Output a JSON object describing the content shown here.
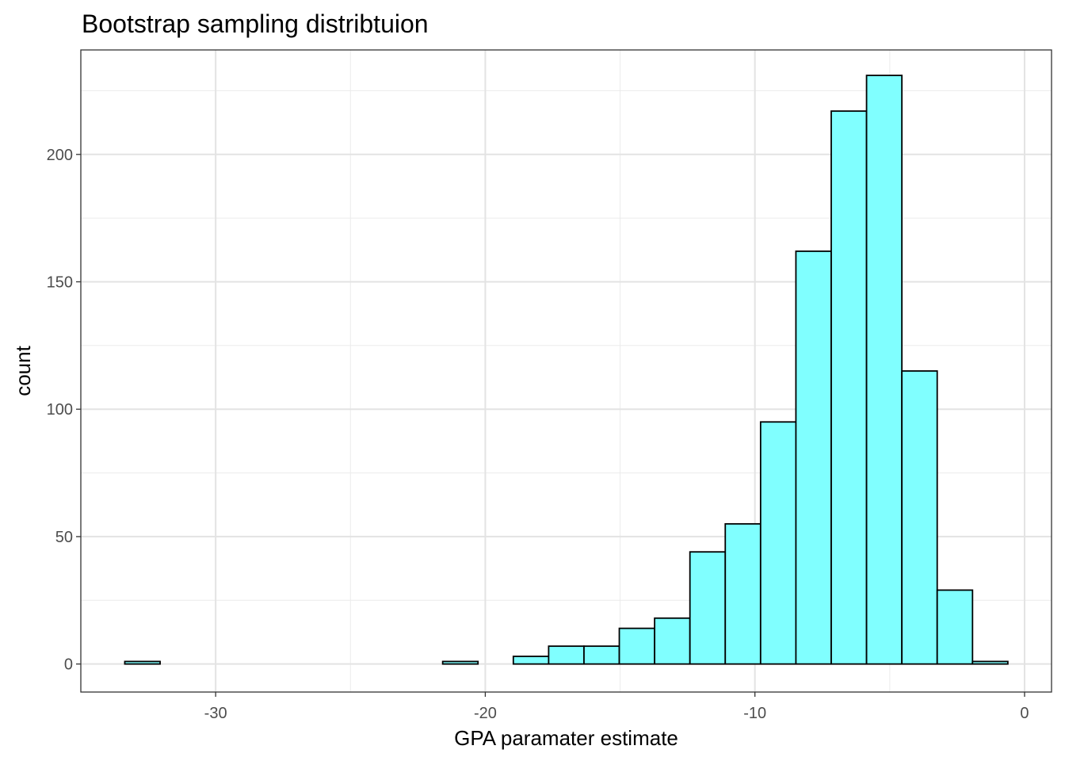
{
  "chart_data": {
    "type": "bar",
    "title": "Bootstrap sampling distribtuion",
    "xlabel": "GPA paramater estimate",
    "ylabel": "count",
    "xlim": [
      -35,
      1
    ],
    "ylim": [
      -11,
      241
    ],
    "x_ticks": [
      -30,
      -20,
      -10,
      0
    ],
    "x_tick_labels": [
      "-30",
      "-20",
      "-10",
      "0"
    ],
    "y_ticks": [
      0,
      50,
      100,
      150,
      200
    ],
    "y_tick_labels": [
      "0",
      "50",
      "100",
      "150",
      "200"
    ],
    "bin_width": 1.31,
    "bins": [
      {
        "x0": -33.37,
        "x1": -32.06,
        "count": 1
      },
      {
        "x0": -32.06,
        "x1": -30.75,
        "count": 0
      },
      {
        "x0": -30.75,
        "x1": -29.44,
        "count": 0
      },
      {
        "x0": -29.44,
        "x1": -28.13,
        "count": 0
      },
      {
        "x0": -28.13,
        "x1": -26.82,
        "count": 0
      },
      {
        "x0": -26.82,
        "x1": -25.51,
        "count": 0
      },
      {
        "x0": -25.51,
        "x1": -24.2,
        "count": 0
      },
      {
        "x0": -24.2,
        "x1": -22.89,
        "count": 0
      },
      {
        "x0": -22.89,
        "x1": -21.58,
        "count": 0
      },
      {
        "x0": -21.58,
        "x1": -20.27,
        "count": 1
      },
      {
        "x0": -20.27,
        "x1": -18.96,
        "count": 0
      },
      {
        "x0": -18.96,
        "x1": -17.65,
        "count": 3
      },
      {
        "x0": -17.65,
        "x1": -16.34,
        "count": 7
      },
      {
        "x0": -16.34,
        "x1": -15.03,
        "count": 7
      },
      {
        "x0": -15.03,
        "x1": -13.72,
        "count": 14
      },
      {
        "x0": -13.72,
        "x1": -12.41,
        "count": 18
      },
      {
        "x0": -12.41,
        "x1": -11.1,
        "count": 44
      },
      {
        "x0": -11.1,
        "x1": -9.79,
        "count": 55
      },
      {
        "x0": -9.79,
        "x1": -8.48,
        "count": 95
      },
      {
        "x0": -8.48,
        "x1": -7.17,
        "count": 162
      },
      {
        "x0": -7.17,
        "x1": -5.86,
        "count": 217
      },
      {
        "x0": -5.86,
        "x1": -4.55,
        "count": 231
      },
      {
        "x0": -4.55,
        "x1": -3.24,
        "count": 115
      },
      {
        "x0": -3.24,
        "x1": -1.93,
        "count": 29
      },
      {
        "x0": -1.93,
        "x1": -0.62,
        "count": 1
      }
    ],
    "fill_color": "#80ffff",
    "stroke_color": "#000000",
    "grid": true,
    "legend": "none"
  }
}
